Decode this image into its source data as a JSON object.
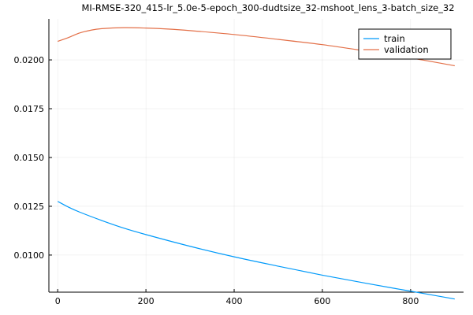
{
  "chart_data": {
    "type": "line",
    "title": "MI-RMSE-320_415-lr_5.0e-5-epoch_300-dudtsize_32-mshoot_lens_3-batch_size_32",
    "xlabel": "",
    "ylabel": "",
    "xlim": [
      -20,
      920
    ],
    "ylim": [
      0.0081,
      0.0221
    ],
    "x_ticks": [
      0,
      200,
      400,
      600,
      800
    ],
    "x_tick_labels": [
      "0",
      "200",
      "400",
      "600",
      "800"
    ],
    "y_ticks": [
      0.01,
      0.0125,
      0.015,
      0.0175,
      0.02
    ],
    "y_tick_labels": [
      "0.0100",
      "0.0125",
      "0.0150",
      "0.0175",
      "0.0200"
    ],
    "grid": true,
    "legend_position": "top-right",
    "series": [
      {
        "name": "train",
        "color": "#009AFA",
        "x": [
          0,
          25,
          50,
          100,
          150,
          200,
          300,
          400,
          500,
          600,
          700,
          800,
          900
        ],
        "y": [
          0.01275,
          0.01245,
          0.0122,
          0.01177,
          0.01138,
          0.01105,
          0.01045,
          0.00991,
          0.00943,
          0.00897,
          0.00855,
          0.00815,
          0.00775
        ]
      },
      {
        "name": "validation",
        "color": "#E36F47",
        "x": [
          0,
          25,
          50,
          75,
          100,
          150,
          200,
          250,
          300,
          400,
          500,
          600,
          700,
          800,
          900
        ],
        "y": [
          0.02095,
          0.02115,
          0.02138,
          0.02152,
          0.0216,
          0.02165,
          0.02163,
          0.02158,
          0.0215,
          0.0213,
          0.02105,
          0.02078,
          0.02045,
          0.0201,
          0.0197
        ]
      }
    ]
  }
}
